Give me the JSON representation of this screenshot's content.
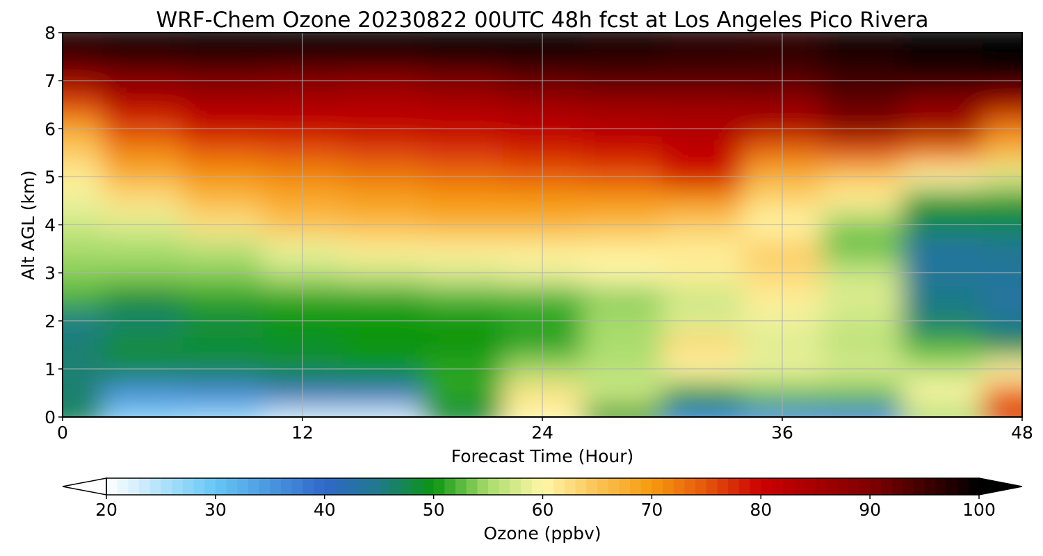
{
  "chart_data": {
    "type": "heatmap",
    "title": "WRF-Chem Ozone  20230822 00UTC 48h fcst at Los Angeles Pico Rivera",
    "xlabel": "Forecast Time (Hour)",
    "ylabel": "Alt AGL (km)",
    "xlim": [
      0,
      48
    ],
    "ylim": [
      0,
      8
    ],
    "x_ticks": [
      0,
      12,
      24,
      36,
      48
    ],
    "y_ticks": [
      0,
      1,
      2,
      3,
      4,
      5,
      6,
      7,
      8
    ],
    "grid": true,
    "colorbar": {
      "label": "Ozone  (ppbv)",
      "range": [
        20,
        100
      ],
      "ticks": [
        20,
        30,
        40,
        50,
        60,
        70,
        80,
        90,
        100
      ],
      "extend": "both",
      "color_stops": [
        [
          20,
          "#ffffff"
        ],
        [
          30,
          "#66c6f5"
        ],
        [
          40,
          "#2f68c9"
        ],
        [
          45,
          "#1f7a8a"
        ],
        [
          50,
          "#0b9611"
        ],
        [
          55,
          "#a8dc6c"
        ],
        [
          60,
          "#fff7a8"
        ],
        [
          65,
          "#fbc355"
        ],
        [
          70,
          "#f79a0e"
        ],
        [
          75,
          "#e4560d"
        ],
        [
          80,
          "#cc0000"
        ],
        [
          90,
          "#800000"
        ],
        [
          100,
          "#000000"
        ]
      ]
    },
    "z_units": "ppbv",
    "x": [
      0,
      4,
      8,
      12,
      16,
      20,
      24,
      28,
      32,
      36,
      40,
      44,
      48
    ],
    "y": [
      0,
      0.5,
      1,
      1.5,
      2,
      2.5,
      3,
      3.5,
      4,
      4.5,
      5,
      5.5,
      6,
      6.5,
      7,
      7.5,
      8
    ],
    "z": [
      [
        47,
        28,
        27,
        23,
        23,
        48,
        60,
        50,
        38,
        37,
        38,
        55,
        77
      ],
      [
        46,
        36,
        37,
        41,
        41,
        51,
        62,
        57,
        50,
        53,
        53,
        60,
        73
      ],
      [
        46,
        47,
        47,
        48,
        49,
        51,
        55,
        56,
        60,
        59,
        58,
        56,
        60
      ],
      [
        46,
        49,
        49,
        49,
        50,
        50,
        51,
        55,
        63,
        58,
        56,
        52,
        48
      ],
      [
        45,
        46,
        48,
        50,
        50,
        50,
        51,
        55,
        58,
        59,
        57,
        46,
        44
      ],
      [
        52,
        49,
        51,
        51,
        51,
        52,
        52,
        54,
        57,
        61,
        58,
        45,
        43
      ],
      [
        54,
        54,
        54,
        56,
        57,
        58,
        59,
        60,
        61,
        63,
        57,
        44,
        44
      ],
      [
        55,
        55,
        56,
        59,
        61,
        61,
        61,
        61,
        61,
        64,
        53,
        43,
        44
      ],
      [
        57,
        58,
        62,
        65,
        66,
        67,
        67,
        66,
        64,
        60,
        54,
        47,
        47
      ],
      [
        59,
        62,
        66,
        68,
        69,
        70,
        70,
        70,
        70,
        63,
        61,
        50,
        50
      ],
      [
        61,
        67,
        70,
        71,
        72,
        73,
        74,
        75,
        79,
        67,
        64,
        60,
        58
      ],
      [
        64,
        71,
        74,
        75,
        76,
        77,
        78,
        79,
        81,
        73,
        75,
        72,
        66
      ],
      [
        68,
        76,
        80,
        80,
        81,
        81,
        82,
        83,
        84,
        83,
        88,
        85,
        72
      ],
      [
        76,
        82,
        84,
        84,
        83,
        84,
        85,
        86,
        86,
        87,
        92,
        88,
        84
      ],
      [
        86,
        89,
        90,
        89,
        88,
        90,
        92,
        93,
        93,
        93,
        95,
        96,
        97
      ],
      [
        95,
        96,
        97,
        97,
        97,
        98,
        98,
        97,
        96,
        96,
        98,
        99,
        100
      ],
      [
        99,
        100,
        100,
        100,
        100,
        100,
        100,
        99,
        98,
        97,
        99,
        100,
        100
      ]
    ]
  }
}
